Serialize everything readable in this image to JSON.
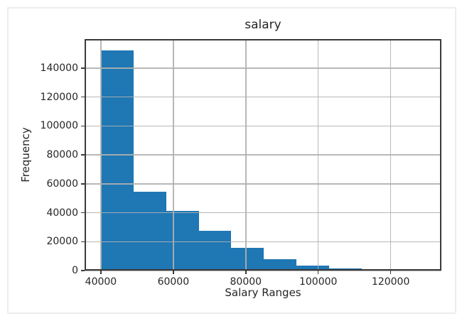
{
  "chart_data": {
    "type": "bar",
    "subtype": "histogram",
    "title": "salary",
    "xlabel": "Salary Ranges",
    "ylabel": "Frequency",
    "bin_edges": [
      40000,
      49000,
      58000,
      67000,
      76000,
      85000,
      94000,
      103000,
      112000,
      121000,
      130000
    ],
    "counts": [
      152000,
      54500,
      41000,
      27500,
      15500,
      7800,
      3600,
      1300,
      0,
      0
    ],
    "xticks": [
      40000,
      60000,
      80000,
      100000,
      120000
    ],
    "yticks": [
      0,
      20000,
      40000,
      60000,
      80000,
      100000,
      120000,
      140000
    ],
    "xlim": [
      35500,
      134000
    ],
    "ylim": [
      0,
      160000
    ],
    "grid": true,
    "legend": false,
    "colors": {
      "bar": "#1f77b4",
      "grid": "#b0b0b0",
      "spine": "#3a3a3a",
      "text": "#262626",
      "background": "#ffffff",
      "card_border": "#ededed"
    }
  }
}
